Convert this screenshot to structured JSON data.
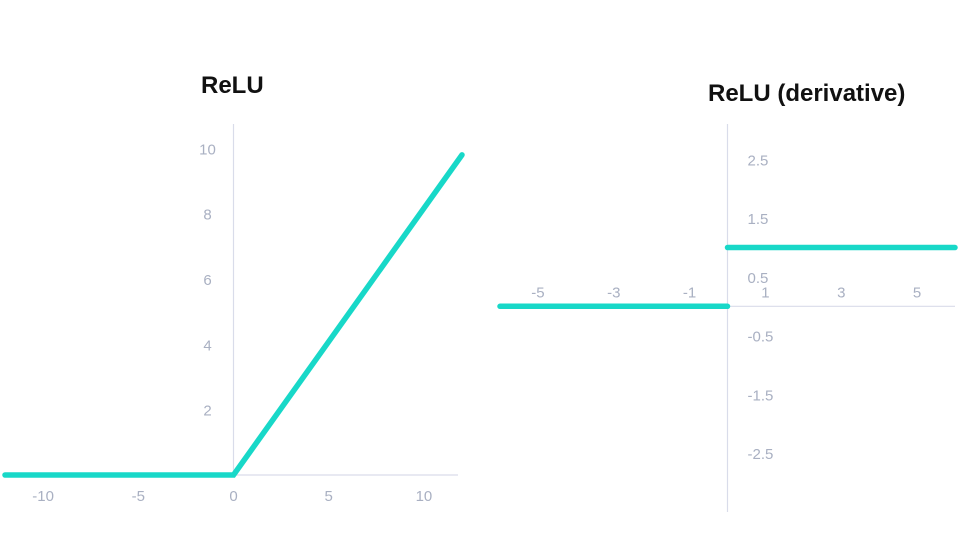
{
  "colors": {
    "series": "#18d8c8",
    "axis": "#d9dcea",
    "tick": "#a9b0c2"
  },
  "chart_data": [
    {
      "type": "line",
      "title": "ReLU",
      "xlim": [
        -12,
        12
      ],
      "ylim": [
        0,
        10.5
      ],
      "x_ticks": [
        -10,
        -5,
        0,
        5,
        10
      ],
      "y_ticks": [
        2,
        4,
        6,
        8,
        10
      ],
      "grid": false,
      "series": [
        {
          "x": [
            -12,
            0,
            12
          ],
          "y": [
            0,
            0,
            9.8
          ]
        }
      ]
    },
    {
      "type": "line",
      "title": "ReLU (derivative)",
      "xlim": [
        -6,
        6
      ],
      "ylim": [
        -3.5,
        3
      ],
      "x_ticks": [
        -5,
        -3,
        -1,
        1,
        3,
        5
      ],
      "y_ticks": [
        2.5,
        1.5,
        0.5,
        -0.5,
        -1.5,
        -2.5
      ],
      "grid": false,
      "series": [
        {
          "x": [
            -6,
            0
          ],
          "y": [
            0,
            0
          ]
        },
        {
          "x": [
            0,
            6
          ],
          "y": [
            1,
            1
          ]
        }
      ]
    }
  ]
}
